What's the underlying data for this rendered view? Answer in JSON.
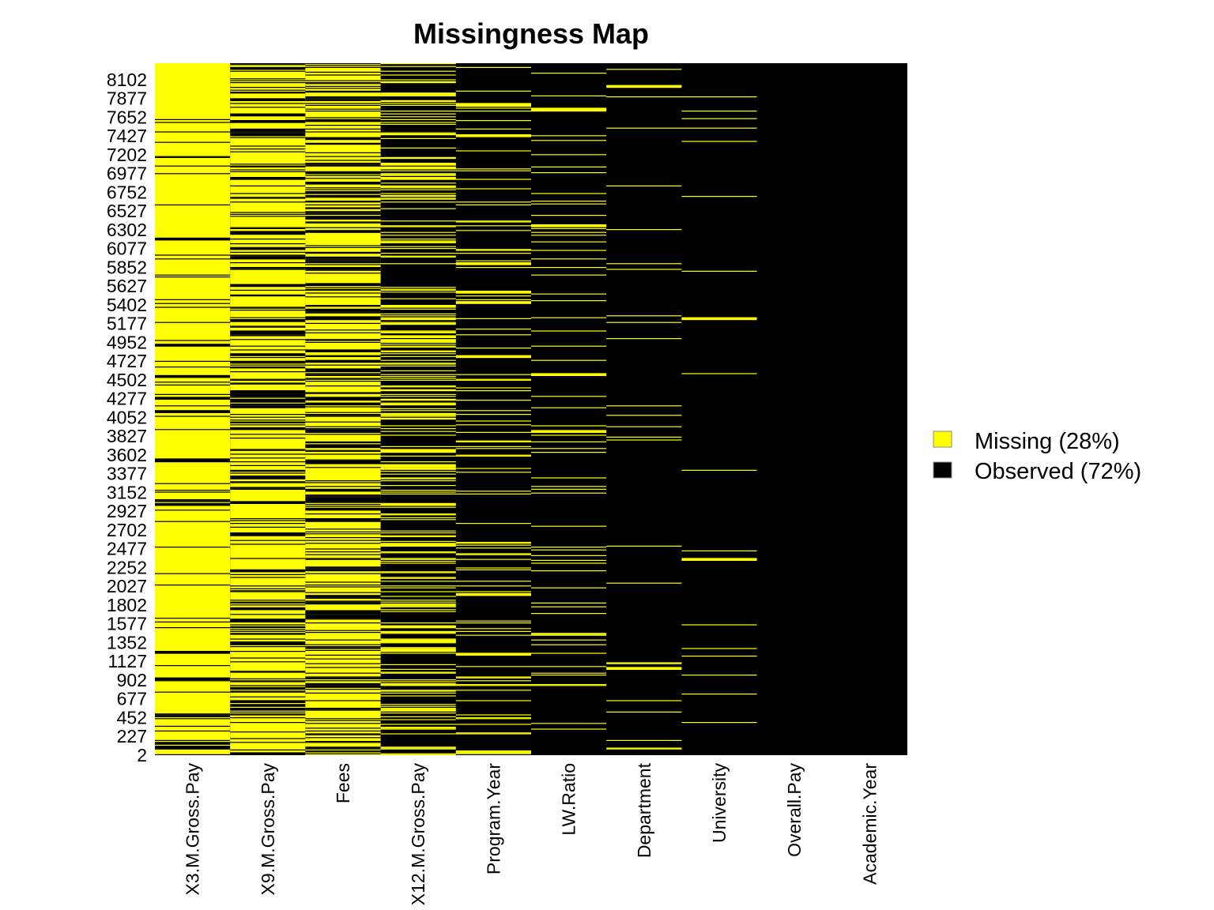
{
  "chart_data": {
    "type": "heatmap",
    "title": "Missingness Map",
    "xlabel": "",
    "ylabel": "",
    "columns": [
      "X3.M.Gross.Pay",
      "X9.M.Gross.Pay",
      "Fees",
      "X12.M.Gross.Pay",
      "Program.Year",
      "LW.Ratio",
      "Department",
      "University",
      "Overall.Pay",
      "Academic.Year"
    ],
    "column_missing_fraction": [
      0.9,
      0.7,
      0.62,
      0.33,
      0.12,
      0.08,
      0.03,
      0.03,
      0.0005,
      0.0
    ],
    "y_ticks": [
      "2",
      "227",
      "452",
      "677",
      "902",
      "1127",
      "1352",
      "1577",
      "1802",
      "2027",
      "2252",
      "2477",
      "2702",
      "2927",
      "3152",
      "3377",
      "3602",
      "3827",
      "4052",
      "4277",
      "4502",
      "4727",
      "4952",
      "5177",
      "5402",
      "5627",
      "5852",
      "6077",
      "6302",
      "6527",
      "6752",
      "6977",
      "7202",
      "7427",
      "7652",
      "7877",
      "8102"
    ],
    "y_range": [
      1,
      8300
    ],
    "legend": [
      {
        "label": "Missing (28%)",
        "color": "#ffff00"
      },
      {
        "label": "Observed (72%)",
        "color": "#000000"
      }
    ],
    "legend_position": "right",
    "missing_color": "#ffff00",
    "observed_color": "#000000",
    "grid": false
  }
}
